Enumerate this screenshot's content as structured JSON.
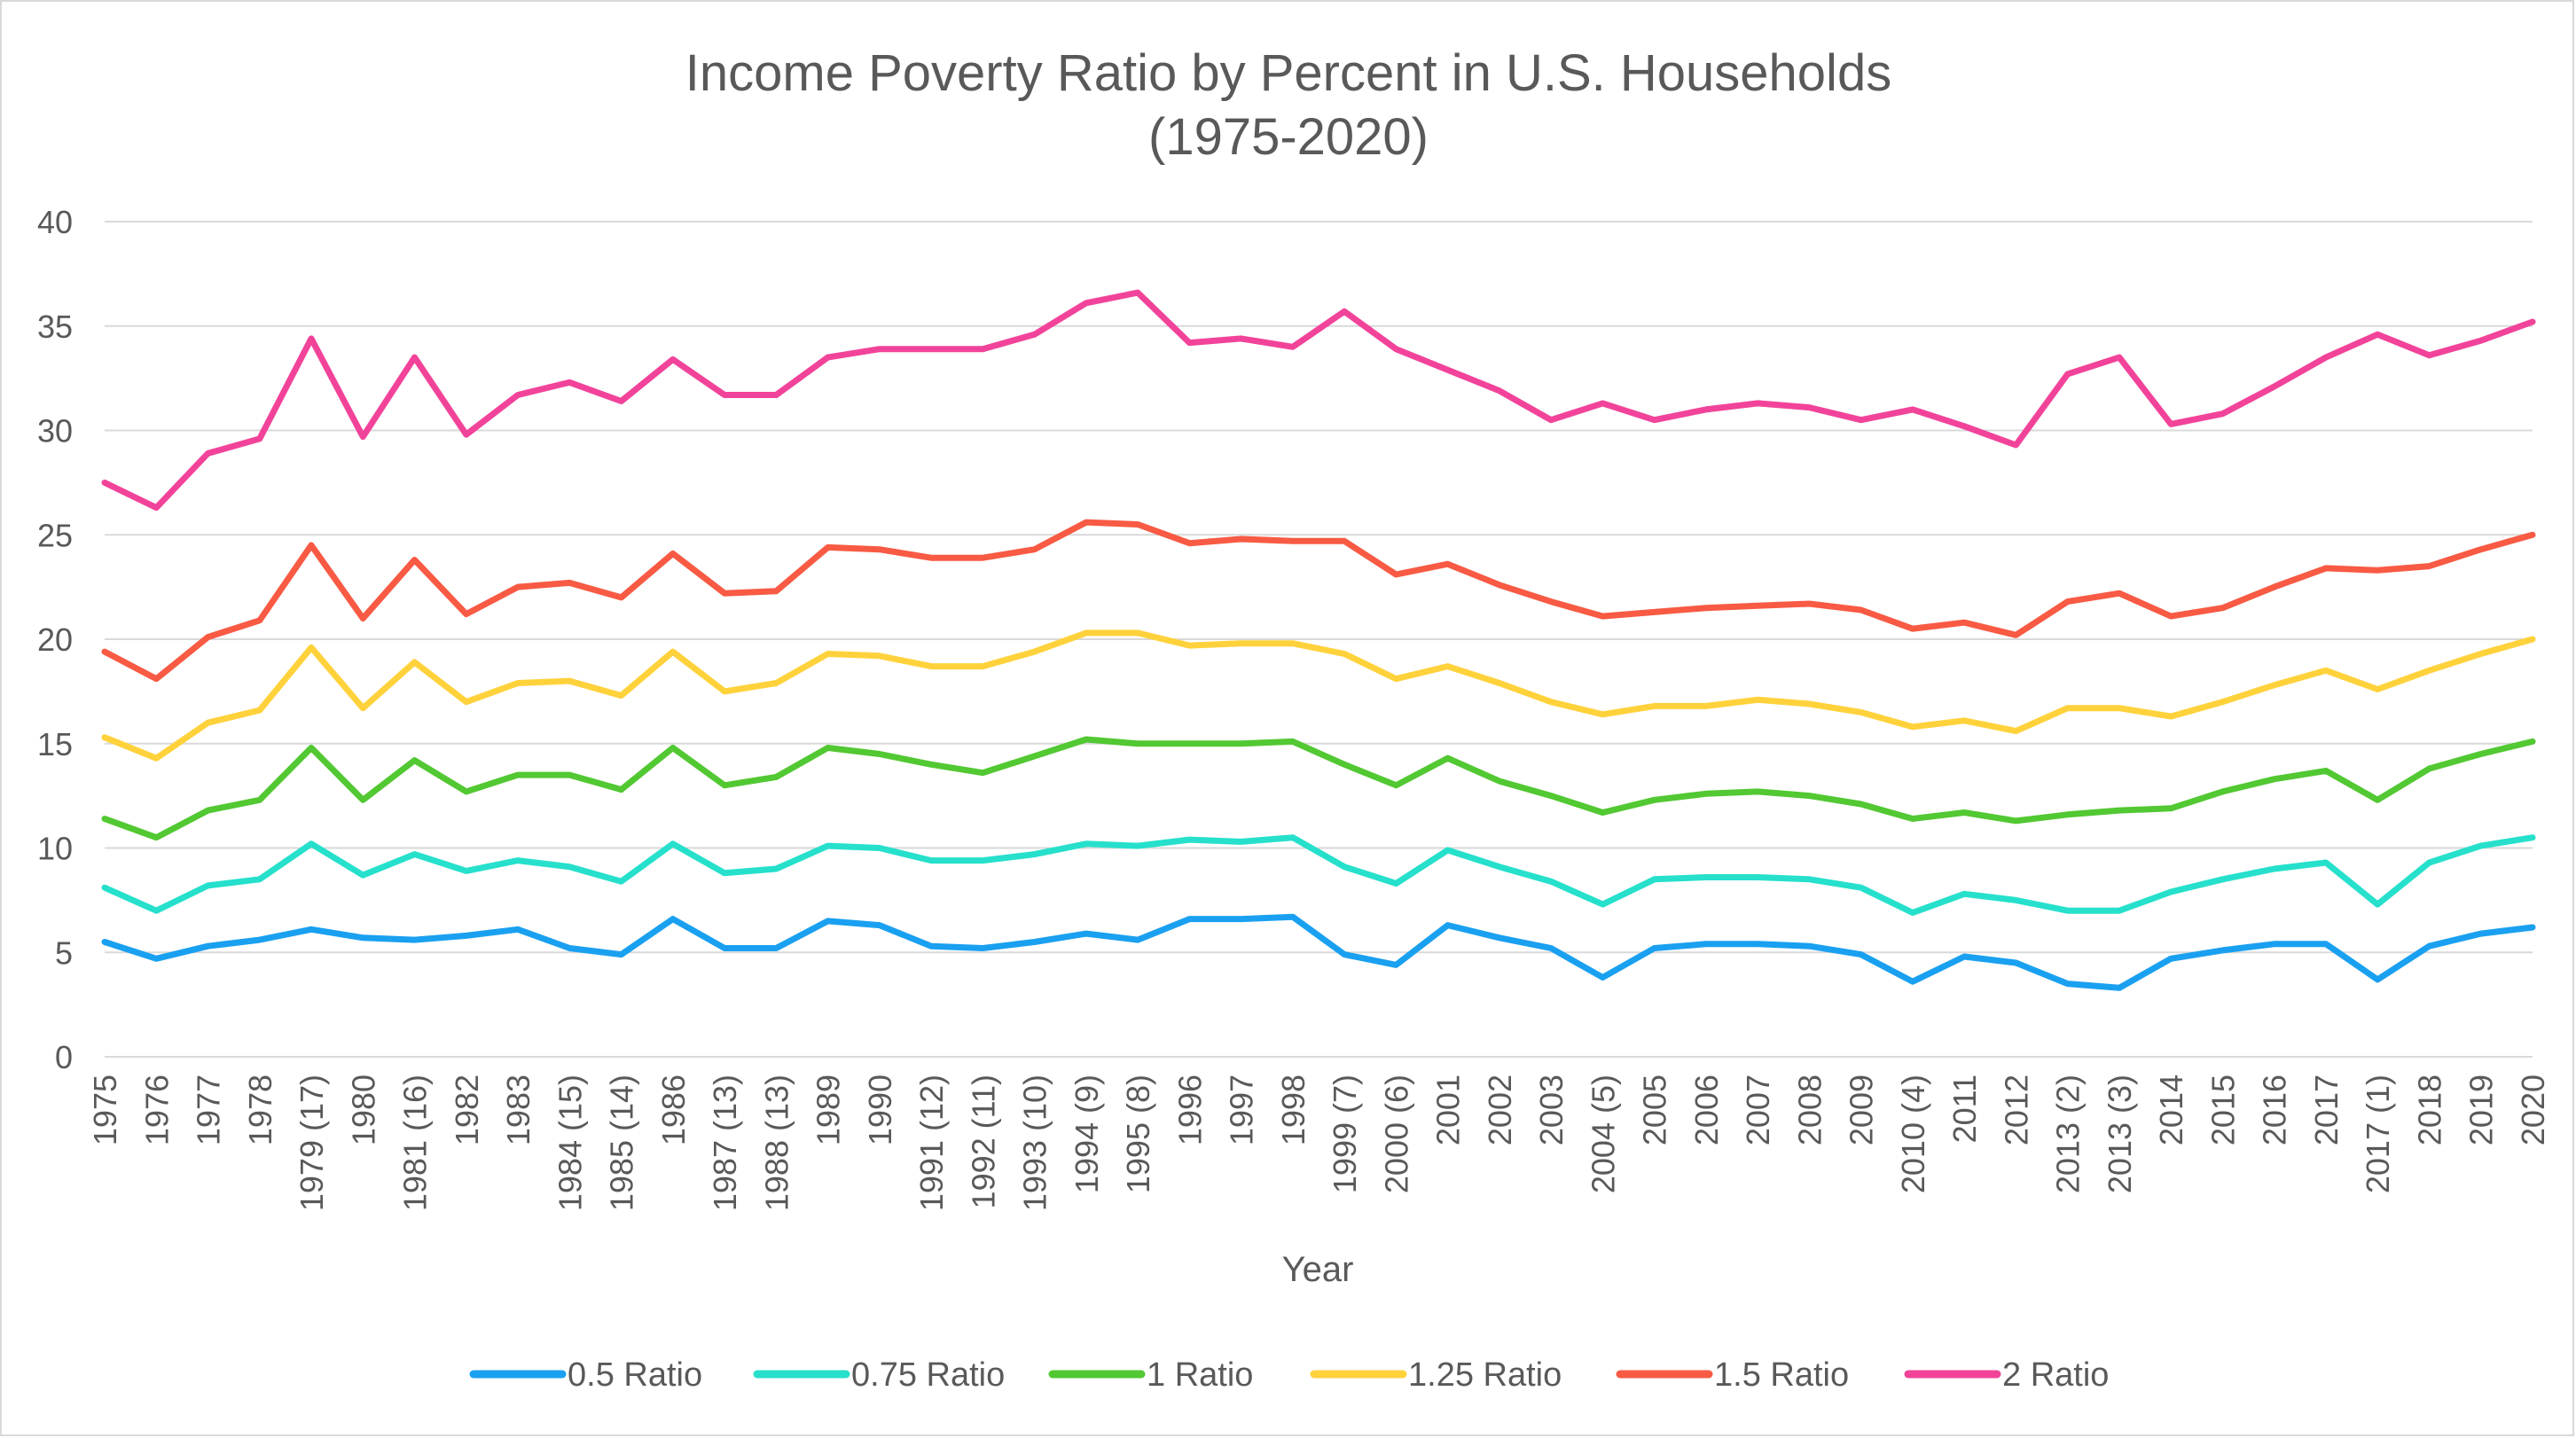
{
  "chart_data": {
    "type": "line",
    "title": "Income Poverty Ratio by Percent in U.S. Households",
    "subtitle": "(1975-2020)",
    "xlabel": "Year",
    "ylabel": "",
    "ylim": [
      0,
      40
    ],
    "yticks": [
      0,
      5,
      10,
      15,
      20,
      25,
      30,
      35,
      40
    ],
    "grid": true,
    "legend_position": "bottom",
    "categories": [
      "1975",
      "1976",
      "1977",
      "1978",
      "1979 (17)",
      "1980",
      "1981 (16)",
      "1982",
      "1983",
      "1984 (15)",
      "1985 (14)",
      "1986",
      "1987 (13)",
      "1988 (13)",
      "1989",
      "1990",
      "1991 (12)",
      "1992 (11)",
      "1993 (10)",
      "1994 (9)",
      "1995 (8)",
      "1996",
      "1997",
      "1998",
      "1999 (7)",
      "2000 (6)",
      "2001",
      "2002",
      "2003",
      "2004 (5)",
      "2005",
      "2006",
      "2007",
      "2008",
      "2009",
      "2010 (4)",
      "2011",
      "2012",
      "2013 (2)",
      "2013 (3)",
      "2014",
      "2015",
      "2016",
      "2017",
      "2017 (1)",
      "2018",
      "2019",
      "2020"
    ],
    "series": [
      {
        "name": "0.5 Ratio",
        "color": "#1aa0f0",
        "values": [
          5.5,
          4.7,
          5.3,
          5.6,
          6.1,
          5.7,
          5.6,
          5.8,
          6.1,
          5.2,
          4.9,
          6.6,
          5.2,
          5.2,
          6.5,
          6.3,
          5.3,
          5.2,
          5.5,
          5.9,
          5.6,
          6.6,
          6.6,
          6.7,
          4.9,
          4.4,
          6.3,
          5.7,
          5.2,
          3.8,
          5.2,
          5.4,
          5.4,
          5.3,
          4.9,
          3.6,
          4.8,
          4.5,
          3.5,
          3.3,
          4.7,
          5.1,
          5.4,
          5.4,
          3.7,
          5.3,
          5.9,
          6.2
        ]
      },
      {
        "name": "0.75 Ratio",
        "color": "#26e0cc",
        "values": [
          8.1,
          7.0,
          8.2,
          8.5,
          10.2,
          8.7,
          9.7,
          8.9,
          9.4,
          9.1,
          8.4,
          10.2,
          8.8,
          9.0,
          10.1,
          10.0,
          9.4,
          9.4,
          9.7,
          10.2,
          10.1,
          10.4,
          10.3,
          10.5,
          9.1,
          8.3,
          9.9,
          9.1,
          8.4,
          7.3,
          8.5,
          8.6,
          8.6,
          8.5,
          8.1,
          6.9,
          7.8,
          7.5,
          7.0,
          7.0,
          7.9,
          8.5,
          9.0,
          9.3,
          7.3,
          9.3,
          10.1,
          10.5
        ]
      },
      {
        "name": "1 Ratio",
        "color": "#52c832",
        "values": [
          11.4,
          10.5,
          11.8,
          12.3,
          14.8,
          12.3,
          14.2,
          12.7,
          13.5,
          13.5,
          12.8,
          14.8,
          13.0,
          13.4,
          14.8,
          14.5,
          14.0,
          13.6,
          14.4,
          15.2,
          15.0,
          15.0,
          15.0,
          15.1,
          14.0,
          13.0,
          14.3,
          13.2,
          12.5,
          11.7,
          12.3,
          12.6,
          12.7,
          12.5,
          12.1,
          11.4,
          11.7,
          11.3,
          11.6,
          11.8,
          11.9,
          12.7,
          13.3,
          13.7,
          12.3,
          13.8,
          14.5,
          15.1
        ]
      },
      {
        "name": "1.25 Ratio",
        "color": "#ffd23c",
        "values": [
          15.3,
          14.3,
          16.0,
          16.6,
          19.6,
          16.7,
          18.9,
          17.0,
          17.9,
          18.0,
          17.3,
          19.4,
          17.5,
          17.9,
          19.3,
          19.2,
          18.7,
          18.7,
          19.4,
          20.3,
          20.3,
          19.7,
          19.8,
          19.8,
          19.3,
          18.1,
          18.7,
          17.9,
          17.0,
          16.4,
          16.8,
          16.8,
          17.1,
          16.9,
          16.5,
          15.8,
          16.1,
          15.6,
          16.7,
          16.7,
          16.3,
          17.0,
          17.8,
          18.5,
          17.6,
          18.5,
          19.3,
          20.0
        ]
      },
      {
        "name": "1.5 Ratio",
        "color": "#f85a44",
        "values": [
          19.4,
          18.1,
          20.1,
          20.9,
          24.5,
          21.0,
          23.8,
          21.2,
          22.5,
          22.7,
          22.0,
          24.1,
          22.2,
          22.3,
          24.4,
          24.3,
          23.9,
          23.9,
          24.3,
          25.6,
          25.5,
          24.6,
          24.8,
          24.7,
          24.7,
          23.1,
          23.6,
          22.6,
          21.8,
          21.1,
          21.3,
          21.5,
          21.6,
          21.7,
          21.4,
          20.5,
          20.8,
          20.2,
          21.8,
          22.2,
          21.1,
          21.5,
          22.5,
          23.4,
          23.3,
          23.5,
          24.3,
          25.0
        ]
      },
      {
        "name": "2 Ratio",
        "color": "#f2439a",
        "values": [
          27.5,
          26.3,
          28.9,
          29.6,
          34.4,
          29.7,
          33.5,
          29.8,
          31.7,
          32.3,
          31.4,
          33.4,
          31.7,
          31.7,
          33.5,
          33.9,
          33.9,
          33.9,
          34.6,
          36.1,
          36.6,
          34.2,
          34.4,
          34.0,
          35.7,
          33.9,
          32.9,
          31.9,
          30.5,
          31.3,
          30.5,
          31.0,
          31.3,
          31.1,
          30.5,
          31.0,
          30.2,
          29.3,
          32.7,
          33.5,
          30.3,
          30.8,
          32.1,
          33.5,
          34.6,
          33.6,
          34.3,
          35.2
        ]
      }
    ]
  }
}
